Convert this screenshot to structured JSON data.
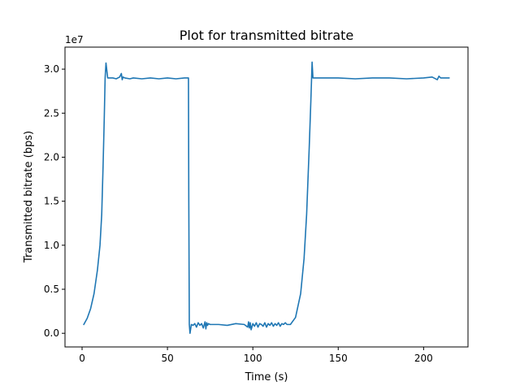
{
  "chart_data": {
    "type": "line",
    "title": "Plot for transmitted bitrate",
    "xlabel": "Time (s)",
    "ylabel": "Transmitted bitrate (bps)",
    "y_offset_text": "1e7",
    "xlim": [
      -10,
      226
    ],
    "ylim": [
      -0.155,
      3.25
    ],
    "y_scale_factor": 10000000,
    "x_ticks": [
      0,
      50,
      100,
      150,
      200
    ],
    "x_tick_labels": [
      "0",
      "50",
      "100",
      "150",
      "200"
    ],
    "y_ticks": [
      0.0,
      0.5,
      1.0,
      1.5,
      2.0,
      2.5,
      3.0
    ],
    "y_tick_labels": [
      "0.0",
      "0.5",
      "1.0",
      "1.5",
      "2.0",
      "2.5",
      "3.0"
    ],
    "grid": false,
    "legend": "none",
    "line_color": "#1f77b4",
    "series": [
      {
        "x": [
          1,
          3,
          5,
          7,
          9,
          10.5,
          11.5,
          12.3,
          13,
          13.5,
          14,
          15,
          18,
          20,
          22,
          23,
          23.5,
          24,
          25,
          28,
          30,
          35,
          40,
          45,
          50,
          55,
          60,
          62.3,
          62.5,
          62.8,
          63.2,
          64,
          65,
          66,
          67,
          68,
          69,
          70,
          71,
          72,
          72.5,
          73,
          73.5,
          74,
          75,
          80,
          85,
          90,
          95,
          97,
          97.5,
          98,
          98.5,
          99,
          100,
          101,
          102,
          103,
          104,
          105,
          106,
          107,
          108,
          109,
          110,
          111,
          112,
          113,
          114,
          115,
          116,
          117,
          118,
          119,
          120,
          121,
          122,
          125,
          128,
          130,
          131.5,
          133,
          134,
          134.7,
          135.2,
          136,
          140,
          150,
          160,
          170,
          180,
          190,
          200,
          205,
          208,
          209,
          210,
          215
        ],
        "y": [
          0.1,
          0.17,
          0.28,
          0.45,
          0.72,
          1.0,
          1.35,
          1.9,
          2.45,
          2.9,
          3.07,
          2.9,
          2.9,
          2.89,
          2.91,
          2.95,
          2.88,
          2.91,
          2.9,
          2.89,
          2.9,
          2.89,
          2.9,
          2.89,
          2.9,
          2.89,
          2.9,
          2.9,
          1.5,
          0.1,
          0.0,
          0.1,
          0.09,
          0.11,
          0.07,
          0.12,
          0.09,
          0.11,
          0.06,
          0.13,
          0.05,
          0.12,
          0.09,
          0.11,
          0.1,
          0.1,
          0.09,
          0.11,
          0.1,
          0.07,
          0.13,
          0.06,
          0.12,
          0.04,
          0.11,
          0.08,
          0.12,
          0.07,
          0.11,
          0.1,
          0.08,
          0.12,
          0.07,
          0.11,
          0.09,
          0.12,
          0.08,
          0.11,
          0.09,
          0.12,
          0.08,
          0.11,
          0.1,
          0.12,
          0.1,
          0.1,
          0.1,
          0.18,
          0.45,
          0.85,
          1.35,
          2.1,
          2.65,
          3.08,
          2.9,
          2.9,
          2.9,
          2.9,
          2.89,
          2.9,
          2.9,
          2.89,
          2.9,
          2.91,
          2.88,
          2.92,
          2.9,
          2.9
        ]
      }
    ]
  }
}
